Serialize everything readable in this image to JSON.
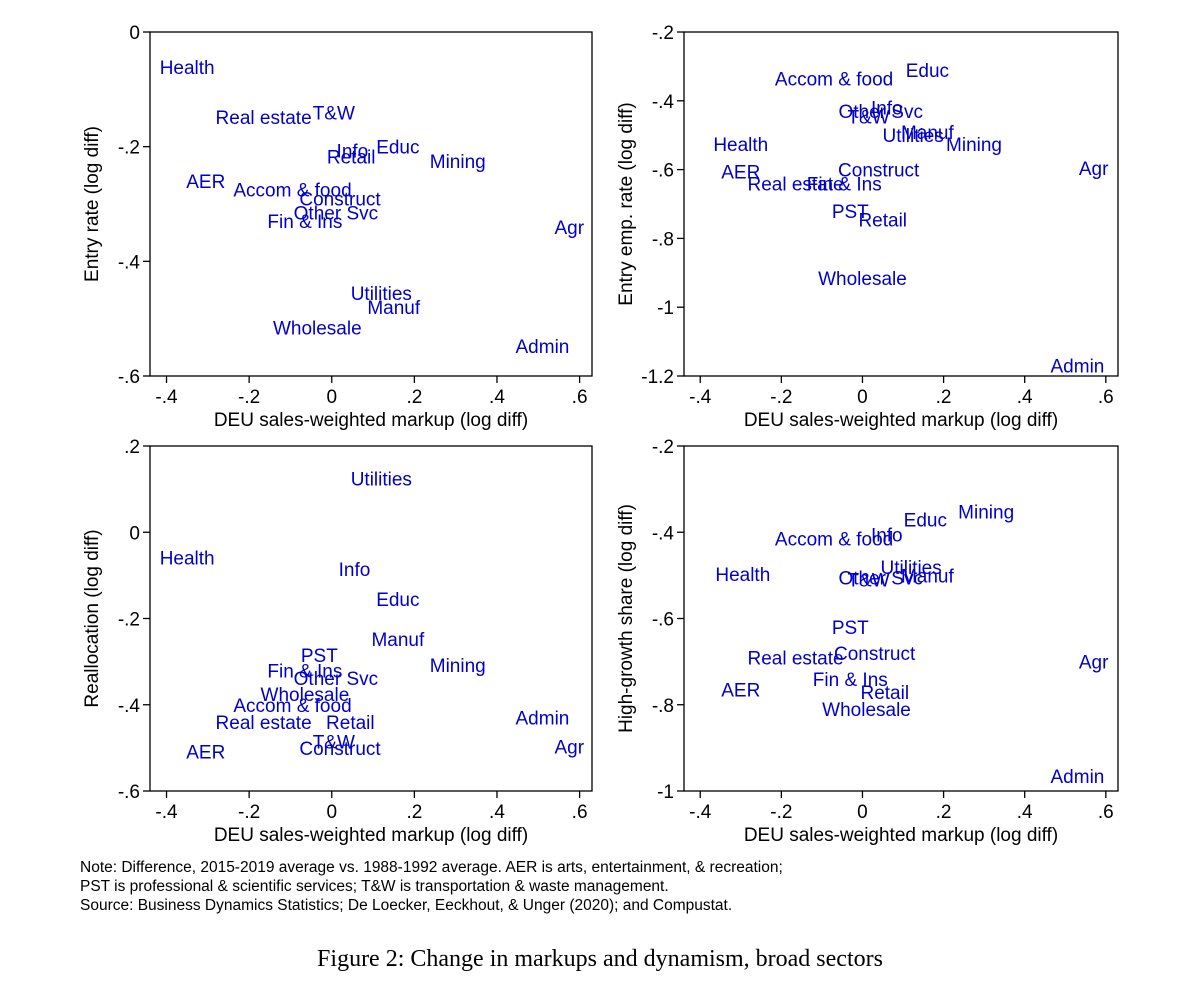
{
  "chart_data": [
    {
      "type": "scatter",
      "panel": "top-left",
      "title": "",
      "xlabel": "DEU sales-weighted markup (log diff)",
      "ylabel": "Entry rate (log diff)",
      "xlim": [
        -0.44,
        0.63
      ],
      "ylim": [
        -0.6,
        0
      ],
      "xticks": [
        -0.4,
        -0.2,
        0,
        0.2,
        0.4,
        0.6
      ],
      "xtick_labels": [
        "-.4",
        "-.2",
        "0",
        ".2",
        ".4",
        ".6"
      ],
      "yticks": [
        -0.6,
        -0.4,
        -0.2,
        0
      ],
      "ytick_labels": [
        "-.6",
        "-.4",
        "-.2",
        "0"
      ],
      "points": [
        {
          "label": "Health",
          "x": -0.35,
          "y": -0.061
        },
        {
          "label": "Real estate",
          "x": -0.165,
          "y": -0.148
        },
        {
          "label": "T&W",
          "x": 0.005,
          "y": -0.14
        },
        {
          "label": "Info",
          "x": 0.05,
          "y": -0.207
        },
        {
          "label": "Educ",
          "x": 0.16,
          "y": -0.2
        },
        {
          "label": "Retail",
          "x": 0.047,
          "y": -0.217
        },
        {
          "label": "Mining",
          "x": 0.305,
          "y": -0.225
        },
        {
          "label": "AER",
          "x": -0.305,
          "y": -0.26
        },
        {
          "label": "Accom & food",
          "x": -0.095,
          "y": -0.275
        },
        {
          "label": "Construct",
          "x": 0.02,
          "y": -0.29
        },
        {
          "label": "Other Svc",
          "x": 0.01,
          "y": -0.315
        },
        {
          "label": "Fin & Ins",
          "x": -0.065,
          "y": -0.33
        },
        {
          "label": "Agr",
          "x": 0.575,
          "y": -0.34
        },
        {
          "label": "Utilities",
          "x": 0.12,
          "y": -0.455
        },
        {
          "label": "Manuf",
          "x": 0.15,
          "y": -0.48
        },
        {
          "label": "Wholesale",
          "x": -0.035,
          "y": -0.515
        },
        {
          "label": "Admin",
          "x": 0.51,
          "y": -0.548
        }
      ]
    },
    {
      "type": "scatter",
      "panel": "top-right",
      "title": "",
      "xlabel": "DEU sales-weighted markup (log diff)",
      "ylabel": "Entry emp. rate (log diff)",
      "xlim": [
        -0.44,
        0.63
      ],
      "ylim": [
        -1.2,
        -0.2
      ],
      "xticks": [
        -0.4,
        -0.2,
        0,
        0.2,
        0.4,
        0.6
      ],
      "xtick_labels": [
        "-.4",
        "-.2",
        "0",
        ".2",
        ".4",
        ".6"
      ],
      "yticks": [
        -1.2,
        -1,
        -0.8,
        -0.6,
        -0.4,
        -0.2
      ],
      "ytick_labels": [
        "-1.2",
        "-1",
        "-.8",
        "-.6",
        "-.4",
        "-.2"
      ],
      "points": [
        {
          "label": "Educ",
          "x": 0.16,
          "y": -0.31
        },
        {
          "label": "Accom & food",
          "x": -0.07,
          "y": -0.335
        },
        {
          "label": "Other Svc",
          "x": 0.045,
          "y": -0.43
        },
        {
          "label": "Info",
          "x": 0.06,
          "y": -0.42
        },
        {
          "label": "T&W",
          "x": 0.015,
          "y": -0.445
        },
        {
          "label": "Manuf",
          "x": 0.16,
          "y": -0.49
        },
        {
          "label": "Utilities",
          "x": 0.125,
          "y": -0.5
        },
        {
          "label": "Mining",
          "x": 0.275,
          "y": -0.525
        },
        {
          "label": "Health",
          "x": -0.3,
          "y": -0.525
        },
        {
          "label": "AER",
          "x": -0.3,
          "y": -0.605
        },
        {
          "label": "Construct",
          "x": 0.04,
          "y": -0.6
        },
        {
          "label": "Real estate",
          "x": -0.165,
          "y": -0.64
        },
        {
          "label": "Fin & Ins",
          "x": -0.045,
          "y": -0.64
        },
        {
          "label": "Agr",
          "x": 0.57,
          "y": -0.595
        },
        {
          "label": "PST",
          "x": -0.03,
          "y": -0.72
        },
        {
          "label": "Retail",
          "x": 0.05,
          "y": -0.745
        },
        {
          "label": "Wholesale",
          "x": 0.0,
          "y": -0.915
        },
        {
          "label": "Admin",
          "x": 0.53,
          "y": -1.17
        }
      ]
    },
    {
      "type": "scatter",
      "panel": "bottom-left",
      "title": "",
      "xlabel": "DEU sales-weighted markup (log diff)",
      "ylabel": "Reallocation (log diff)",
      "xlim": [
        -0.44,
        0.63
      ],
      "ylim": [
        -0.6,
        0.2
      ],
      "xticks": [
        -0.4,
        -0.2,
        0,
        0.2,
        0.4,
        0.6
      ],
      "xtick_labels": [
        "-.4",
        "-.2",
        "0",
        ".2",
        ".4",
        ".6"
      ],
      "yticks": [
        -0.6,
        -0.4,
        -0.2,
        0,
        0.2
      ],
      "ytick_labels": [
        "-.6",
        "-.4",
        "-.2",
        "0",
        ".2"
      ],
      "points": [
        {
          "label": "Utilities",
          "x": 0.12,
          "y": 0.125
        },
        {
          "label": "Health",
          "x": -0.35,
          "y": -0.058
        },
        {
          "label": "Info",
          "x": 0.055,
          "y": -0.085
        },
        {
          "label": "Educ",
          "x": 0.16,
          "y": -0.155
        },
        {
          "label": "Manuf",
          "x": 0.16,
          "y": -0.248
        },
        {
          "label": "PST",
          "x": -0.03,
          "y": -0.285
        },
        {
          "label": "Mining",
          "x": 0.305,
          "y": -0.308
        },
        {
          "label": "Fin & Ins",
          "x": -0.065,
          "y": -0.32
        },
        {
          "label": "Other Svc",
          "x": 0.01,
          "y": -0.338
        },
        {
          "label": "Wholesale",
          "x": -0.065,
          "y": -0.375
        },
        {
          "label": "Accom & food",
          "x": -0.095,
          "y": -0.4
        },
        {
          "label": "Real estate",
          "x": -0.165,
          "y": -0.44
        },
        {
          "label": "Retail",
          "x": 0.045,
          "y": -0.44
        },
        {
          "label": "Admin",
          "x": 0.51,
          "y": -0.43
        },
        {
          "label": "T&W",
          "x": 0.005,
          "y": -0.485
        },
        {
          "label": "Construct",
          "x": 0.02,
          "y": -0.5
        },
        {
          "label": "AER",
          "x": -0.305,
          "y": -0.508
        },
        {
          "label": "Agr",
          "x": 0.575,
          "y": -0.497
        }
      ]
    },
    {
      "type": "scatter",
      "panel": "bottom-right",
      "title": "",
      "xlabel": "DEU sales-weighted markup (log diff)",
      "ylabel": "High-growth share (log diff)",
      "xlim": [
        -0.44,
        0.63
      ],
      "ylim": [
        -1,
        -0.2
      ],
      "xticks": [
        -0.4,
        -0.2,
        0,
        0.2,
        0.4,
        0.6
      ],
      "xtick_labels": [
        "-.4",
        "-.2",
        "0",
        ".2",
        ".4",
        ".6"
      ],
      "yticks": [
        -1,
        -0.8,
        -0.6,
        -0.4,
        -0.2
      ],
      "ytick_labels": [
        "-1",
        "-.8",
        "-.6",
        "-.4",
        "-.2"
      ],
      "points": [
        {
          "label": "Mining",
          "x": 0.305,
          "y": -0.352
        },
        {
          "label": "Educ",
          "x": 0.155,
          "y": -0.37
        },
        {
          "label": "Info",
          "x": 0.06,
          "y": -0.405
        },
        {
          "label": "Accom & food",
          "x": -0.07,
          "y": -0.415
        },
        {
          "label": "Utilities",
          "x": 0.12,
          "y": -0.48
        },
        {
          "label": "Health",
          "x": -0.295,
          "y": -0.497
        },
        {
          "label": "Other Svc",
          "x": 0.045,
          "y": -0.505
        },
        {
          "label": "T&W",
          "x": 0.015,
          "y": -0.51
        },
        {
          "label": "Manuf",
          "x": 0.16,
          "y": -0.5
        },
        {
          "label": "PST",
          "x": -0.03,
          "y": -0.62
        },
        {
          "label": "Construct",
          "x": 0.03,
          "y": -0.68
        },
        {
          "label": "Real estate",
          "x": -0.165,
          "y": -0.69
        },
        {
          "label": "Agr",
          "x": 0.57,
          "y": -0.7
        },
        {
          "label": "Fin & Ins",
          "x": -0.03,
          "y": -0.74
        },
        {
          "label": "AER",
          "x": -0.3,
          "y": -0.765
        },
        {
          "label": "Retail",
          "x": 0.055,
          "y": -0.77
        },
        {
          "label": "Wholesale",
          "x": 0.01,
          "y": -0.81
        },
        {
          "label": "Admin",
          "x": 0.53,
          "y": -0.965
        }
      ]
    }
  ],
  "note": {
    "line1": "Note: Difference, 2015-2019 average vs. 1988-1992 average. AER is arts, entertainment, & recreation;",
    "line2": "PST is professional & scientific services; T&W is transportation & waste management.",
    "line3": "Source: Business Dynamics Statistics; De Loecker, Eeckhout, & Unger (2020); and Compustat."
  },
  "caption": "Figure 2: Change in markups and dynamism, broad sectors",
  "colors": {
    "marker_text": "#0000cc",
    "axes": "#000000",
    "background": "#ffffff"
  }
}
